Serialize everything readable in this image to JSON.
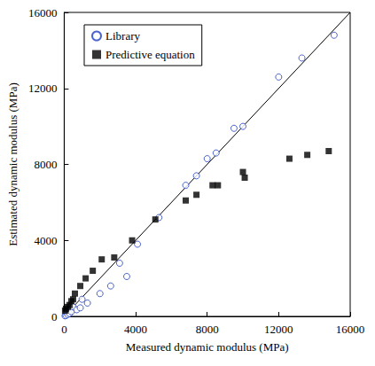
{
  "chart_data": {
    "type": "scatter",
    "x_label": "Measured dynamic modulus (MPa)",
    "y_label": "Estimated dynamic modulus (MPa)",
    "xlim": [
      0,
      16000
    ],
    "ylim": [
      0,
      16000
    ],
    "xticks": [
      0,
      4000,
      8000,
      12000,
      16000
    ],
    "yticks": [
      0,
      4000,
      8000,
      12000,
      16000
    ],
    "grid": false,
    "legend": "upper left",
    "series": [
      {
        "name": "Library",
        "type": "scatter",
        "marker": "open-circle",
        "color": "#1f3fbf",
        "x": [
          50,
          100,
          150,
          200,
          300,
          400,
          500,
          700,
          900,
          1000,
          1300,
          2000,
          2600,
          3100,
          3500,
          4100,
          5300,
          6800,
          7400,
          8000,
          8500,
          9500,
          10000,
          12000,
          13300,
          15100
        ],
        "values": [
          30,
          50,
          200,
          100,
          150,
          250,
          500,
          350,
          450,
          900,
          700,
          1200,
          1600,
          2800,
          2100,
          3800,
          5200,
          6900,
          7400,
          8300,
          8600,
          9900,
          10000,
          12600,
          13600,
          14800
        ]
      },
      {
        "name": "Predictive equation",
        "type": "scatter",
        "marker": "square",
        "color": "#000000",
        "x": [
          50,
          100,
          200,
          300,
          400,
          500,
          600,
          900,
          1200,
          1600,
          2100,
          2800,
          3800,
          5100,
          6800,
          7400,
          8300,
          8600,
          10000,
          10100,
          12600,
          13600,
          14800
        ],
        "values": [
          300,
          400,
          500,
          600,
          800,
          900,
          1200,
          1600,
          2000,
          2400,
          3000,
          3100,
          4000,
          5100,
          6100,
          6400,
          6900,
          6900,
          7600,
          7300,
          8300,
          8500,
          8700
        ]
      },
      {
        "type": "line",
        "marker": "none",
        "line_style": "solid",
        "color": "#000000",
        "x": [
          0,
          16000
        ],
        "values": [
          0,
          16000
        ]
      }
    ]
  }
}
